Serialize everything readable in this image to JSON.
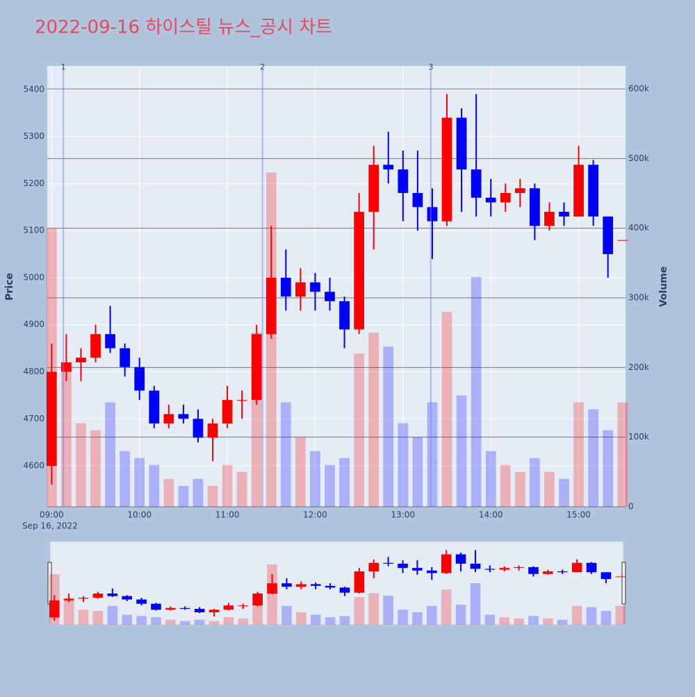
{
  "chart_data": {
    "type": "candlestick",
    "title": "2022-09-16 하이스틸 뉴스_공시 차트",
    "y_label": "Price",
    "y2_label": "Volume",
    "date_label": "Sep 16, 2022",
    "x": [
      "09:00",
      "09:10",
      "09:20",
      "09:30",
      "09:40",
      "09:50",
      "10:00",
      "10:10",
      "10:20",
      "10:30",
      "10:40",
      "10:50",
      "11:00",
      "11:10",
      "11:20",
      "11:30",
      "11:40",
      "11:50",
      "12:00",
      "12:10",
      "12:20",
      "12:30",
      "12:40",
      "12:50",
      "13:00",
      "13:10",
      "13:20",
      "13:30",
      "13:40",
      "13:50",
      "14:00",
      "14:10",
      "14:20",
      "14:30",
      "14:40",
      "14:50",
      "15:00",
      "15:10",
      "15:20",
      "15:30"
    ],
    "open": [
      4600,
      4800,
      4820,
      4830,
      4880,
      4850,
      4810,
      4760,
      4690,
      4710,
      4700,
      4660,
      4690,
      4740,
      4740,
      4880,
      5000,
      4960,
      4990,
      4970,
      4950,
      4890,
      5140,
      5240,
      5230,
      5180,
      5150,
      5120,
      5340,
      5230,
      5170,
      5160,
      5180,
      5190,
      5110,
      5140,
      5130,
      5240,
      5130,
      5080
    ],
    "high": [
      4860,
      4880,
      4850,
      4900,
      4940,
      4860,
      4830,
      4770,
      4730,
      4730,
      4720,
      4700,
      4770,
      4760,
      4900,
      5110,
      5060,
      5020,
      5010,
      5000,
      4960,
      5180,
      5280,
      5310,
      5270,
      5270,
      5190,
      5390,
      5360,
      5390,
      5210,
      5200,
      5210,
      5200,
      5160,
      5160,
      5280,
      5250,
      5130,
      5080
    ],
    "low": [
      4560,
      4780,
      4780,
      4820,
      4840,
      4790,
      4740,
      4680,
      4680,
      4690,
      4650,
      4610,
      4680,
      4700,
      4730,
      4870,
      4930,
      4930,
      4930,
      4930,
      4850,
      4880,
      5060,
      5200,
      5120,
      5100,
      5040,
      5110,
      5140,
      5130,
      5130,
      5140,
      5150,
      5080,
      5100,
      5110,
      5130,
      5110,
      5000,
      5080
    ],
    "close": [
      4800,
      4820,
      4830,
      4880,
      4850,
      4810,
      4760,
      4690,
      4710,
      4700,
      4660,
      4690,
      4740,
      4740,
      4880,
      5000,
      4960,
      4990,
      4970,
      4950,
      4890,
      5140,
      5240,
      5230,
      5180,
      5150,
      5120,
      5340,
      5230,
      5170,
      5160,
      5180,
      5190,
      5110,
      5140,
      5130,
      5240,
      5130,
      5050,
      5080
    ],
    "volume": [
      400000,
      200000,
      120000,
      110000,
      150000,
      80000,
      70000,
      60000,
      40000,
      30000,
      40000,
      30000,
      60000,
      50000,
      250000,
      480000,
      150000,
      100000,
      80000,
      60000,
      70000,
      220000,
      250000,
      230000,
      120000,
      100000,
      150000,
      280000,
      160000,
      330000,
      80000,
      60000,
      50000,
      70000,
      50000,
      40000,
      150000,
      140000,
      110000,
      150000
    ],
    "up_color": "#ff0000",
    "down_color": "#0000ff",
    "xlim": [
      "08:57",
      "15:32"
    ],
    "xticks": [
      "09:00",
      "10:00",
      "11:00",
      "12:00",
      "13:00",
      "14:00",
      "15:00"
    ],
    "ylim": [
      4513,
      5450
    ],
    "yticks": [
      4600,
      4700,
      4800,
      4900,
      5000,
      5100,
      5200,
      5300,
      5400
    ],
    "y2lim": [
      0,
      633000
    ],
    "y2ticks": [
      0,
      {
        "value": 100000,
        "label": "100k"
      },
      {
        "value": 200000,
        "label": "200k"
      },
      {
        "value": 300000,
        "label": "300k"
      },
      {
        "value": 400000,
        "label": "400k"
      },
      {
        "value": 500000,
        "label": "500k"
      },
      {
        "value": 600000,
        "label": "600k"
      }
    ],
    "annotations": [
      {
        "x": "09:08",
        "label": "1"
      },
      {
        "x": "11:24",
        "label": "2"
      },
      {
        "x": "13:19",
        "label": "3"
      }
    ],
    "grid": true
  }
}
